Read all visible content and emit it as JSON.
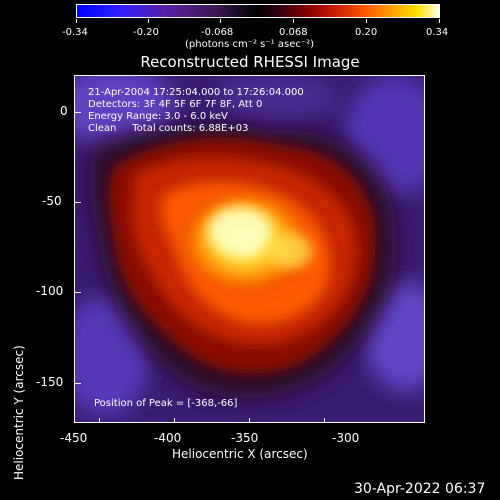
{
  "colorbar": {
    "ticks": [
      "-0.34",
      "-0.20",
      "-0.068",
      "0.068",
      "0.20",
      "0.34"
    ],
    "units_label": "(photons cm⁻² s⁻¹ asec⁻²)"
  },
  "title": "Reconstructed RHESSI Image",
  "info": {
    "time": "21-Apr-2004 17:25:04.000 to 17:26:04.000",
    "detectors": "Detectors: 3F 4F 5F 6F 7F 8F, Att 0",
    "energy": "Energy Range: 3.0 - 6.0 keV",
    "clean": "Clean     Total counts: 6.88E+03",
    "peak": "Position of Peak = [-368,-66]"
  },
  "axes": {
    "xlabel": "Heliocentric X (arcsec)",
    "ylabel": "Heliocentric Y (arcsec)",
    "xticks": [
      "-450",
      "-400",
      "-350",
      "-300"
    ],
    "yticks": [
      "0",
      "-50",
      "-100",
      "-150"
    ]
  },
  "footer_date": "30-Apr-2022 06:37",
  "colors": {
    "background": "#000000",
    "frame": "#ffffff"
  }
}
